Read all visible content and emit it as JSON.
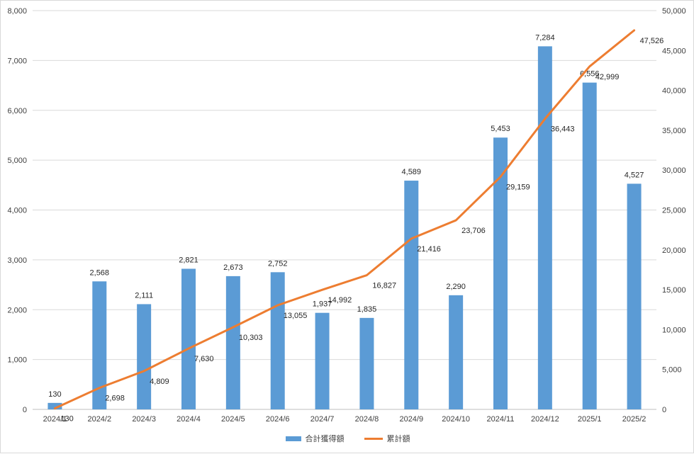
{
  "chart_data": {
    "type": "bar",
    "title": "",
    "xlabel": "",
    "ylabel": "",
    "categories": [
      "2024/1",
      "2024/2",
      "2024/3",
      "2024/4",
      "2024/5",
      "2024/6",
      "2024/7",
      "2024/8",
      "2024/9",
      "2024/10",
      "2024/11",
      "2024/12",
      "2025/1",
      "2025/2"
    ],
    "series": [
      {
        "name": "合計獲得額",
        "type": "bar",
        "axis": "left",
        "color": "#5B9BD5",
        "values": [
          130,
          2568,
          2111,
          2821,
          2673,
          2752,
          1937,
          1835,
          4589,
          2290,
          5453,
          7284,
          6556,
          4527
        ],
        "labels": [
          "130",
          "2,568",
          "2,111",
          "2,821",
          "2,673",
          "2,752",
          "1,937",
          "1,835",
          "4,589",
          "2,290",
          "5,453",
          "7,284",
          "6,556",
          "4,527"
        ]
      },
      {
        "name": "累計額",
        "type": "line",
        "axis": "right",
        "color": "#ED7D31",
        "values": [
          130,
          2698,
          4809,
          7630,
          10303,
          13055,
          14992,
          16827,
          21416,
          23706,
          29159,
          36443,
          42999,
          47526
        ],
        "labels": [
          "130",
          "2,698",
          "4,809",
          "7,630",
          "10,303",
          "13,055",
          "14,992",
          "16,827",
          "21,416",
          "23,706",
          "29,159",
          "36,443",
          "42,999",
          "47,526"
        ]
      }
    ],
    "ylim": [
      0,
      8000
    ],
    "y2lim": [
      0,
      50000
    ],
    "y_ticks": [
      "0",
      "1,000",
      "2,000",
      "3,000",
      "4,000",
      "5,000",
      "6,000",
      "7,000",
      "8,000"
    ],
    "y2_ticks": [
      "0",
      "5,000",
      "10,000",
      "15,000",
      "20,000",
      "25,000",
      "30,000",
      "35,000",
      "40,000",
      "45,000",
      "50,000"
    ],
    "grid": true,
    "legend_position": "bottom"
  }
}
